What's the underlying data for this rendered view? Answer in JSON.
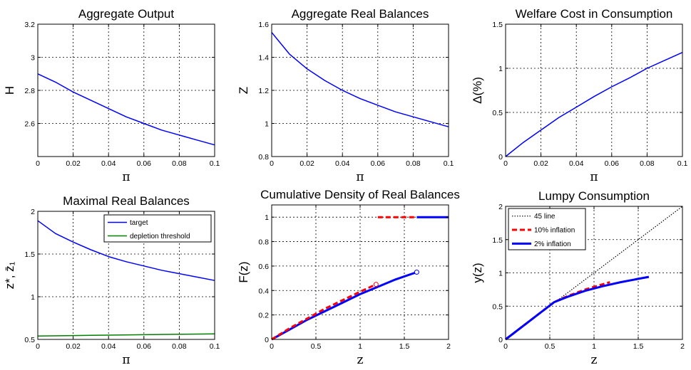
{
  "chart_data": [
    {
      "type": "line",
      "title": "Aggregate Output",
      "xlabel": "π",
      "ylabel": "H",
      "xlim": [
        0,
        0.1
      ],
      "ylim": [
        2.4,
        3.2
      ],
      "grid": true,
      "xticks": [
        0,
        0.02,
        0.04,
        0.06,
        0.08,
        0.1
      ],
      "xticklabels": [
        "0",
        "0.02",
        "0.04",
        "0.06",
        "0.08",
        "0.1"
      ],
      "yticks": [
        2.6,
        2.8,
        3.0,
        3.2
      ],
      "yticklabels": [
        "2.6",
        "2.8",
        "3",
        "3.2"
      ],
      "series": [
        {
          "color": "#0000ff",
          "x": [
            0,
            0.01,
            0.02,
            0.03,
            0.04,
            0.05,
            0.06,
            0.07,
            0.08,
            0.09,
            0.1
          ],
          "y": [
            2.9,
            2.85,
            2.79,
            2.74,
            2.69,
            2.64,
            2.6,
            2.56,
            2.53,
            2.5,
            2.47
          ]
        }
      ]
    },
    {
      "type": "line",
      "title": "Aggregate Real Balances",
      "xlabel": "π",
      "ylabel": "Z",
      "xlim": [
        0,
        0.1
      ],
      "ylim": [
        0.8,
        1.6
      ],
      "grid": true,
      "xticks": [
        0,
        0.02,
        0.04,
        0.06,
        0.08,
        0.1
      ],
      "xticklabels": [
        "0",
        "0.02",
        "0.04",
        "0.06",
        "0.08",
        "0.1"
      ],
      "yticks": [
        0.8,
        1.0,
        1.2,
        1.4,
        1.6
      ],
      "yticklabels": [
        "0.8",
        "1",
        "1.2",
        "1.4",
        "1.6"
      ],
      "series": [
        {
          "color": "#0000ff",
          "x": [
            0,
            0.01,
            0.02,
            0.03,
            0.04,
            0.05,
            0.06,
            0.07,
            0.08,
            0.09,
            0.1
          ],
          "y": [
            1.55,
            1.42,
            1.33,
            1.26,
            1.2,
            1.15,
            1.11,
            1.07,
            1.04,
            1.01,
            0.98
          ]
        }
      ]
    },
    {
      "type": "line",
      "title": "Welfare Cost in Consumption",
      "xlabel": "π",
      "ylabel": "Δ(%)",
      "xlim": [
        0,
        0.1
      ],
      "ylim": [
        0,
        1.5
      ],
      "grid": true,
      "xticks": [
        0,
        0.02,
        0.04,
        0.06,
        0.08,
        0.1
      ],
      "xticklabels": [
        "0",
        "0.02",
        "0.04",
        "0.06",
        "0.08",
        "0.1"
      ],
      "yticks": [
        0,
        0.5,
        1.0,
        1.5
      ],
      "yticklabels": [
        "0",
        "0.5",
        "1",
        "1.5"
      ],
      "series": [
        {
          "color": "#0000ff",
          "x": [
            0,
            0.01,
            0.02,
            0.03,
            0.04,
            0.05,
            0.06,
            0.07,
            0.08,
            0.09,
            0.1
          ],
          "y": [
            0,
            0.16,
            0.3,
            0.44,
            0.56,
            0.68,
            0.79,
            0.89,
            1.0,
            1.09,
            1.18
          ]
        }
      ]
    },
    {
      "type": "line",
      "title": "Maximal Real Balances",
      "xlabel": "π",
      "ylabel": "z*, z̄₁",
      "xlim": [
        0,
        0.1
      ],
      "ylim": [
        0.5,
        2.0
      ],
      "grid": true,
      "legend": "top-right",
      "xticks": [
        0,
        0.02,
        0.04,
        0.06,
        0.08,
        0.1
      ],
      "xticklabels": [
        "0",
        "0.02",
        "0.04",
        "0.06",
        "0.08",
        "0.1"
      ],
      "yticks": [
        0.5,
        1.0,
        1.5,
        2.0
      ],
      "yticklabels": [
        "0.5",
        "1",
        "1.5",
        "2"
      ],
      "series": [
        {
          "name": "target",
          "color": "#0000ff",
          "x": [
            0,
            0.01,
            0.02,
            0.03,
            0.04,
            0.05,
            0.06,
            0.07,
            0.08,
            0.09,
            0.1
          ],
          "y": [
            1.89,
            1.74,
            1.64,
            1.55,
            1.47,
            1.41,
            1.36,
            1.31,
            1.27,
            1.23,
            1.19
          ]
        },
        {
          "name": "depletion threshold",
          "color": "#008000",
          "x": [
            0,
            0.02,
            0.04,
            0.06,
            0.08,
            0.1
          ],
          "y": [
            0.54,
            0.545,
            0.55,
            0.555,
            0.56,
            0.565
          ]
        }
      ]
    },
    {
      "type": "line",
      "title": "Cumulative Density of Real Balances",
      "xlabel": "z",
      "ylabel": "F(z)",
      "xlim": [
        0,
        2
      ],
      "ylim": [
        0,
        1.1
      ],
      "grid": true,
      "xticks": [
        0,
        0.5,
        1,
        1.5,
        2
      ],
      "xticklabels": [
        "0",
        "0.5",
        "1",
        "1.5",
        "2"
      ],
      "yticks": [
        0,
        0.2,
        0.4,
        0.6,
        0.8,
        1.0
      ],
      "yticklabels": [
        "0",
        "0.2",
        "0.4",
        "0.6",
        "0.8",
        "1"
      ],
      "series": [
        {
          "color": "#0000ff",
          "width": 3,
          "x": [
            0,
            0.2,
            0.4,
            0.6,
            0.8,
            1.0,
            1.2,
            1.4,
            1.64
          ],
          "y": [
            0,
            0.08,
            0.16,
            0.23,
            0.3,
            0.37,
            0.43,
            0.49,
            0.55
          ]
        },
        {
          "color": "#0000ff",
          "width": 3,
          "x": [
            1.64,
            2.0
          ],
          "y": [
            1.0,
            1.0
          ]
        },
        {
          "color": "#ff0000",
          "width": 3,
          "dash": true,
          "x": [
            0,
            0.2,
            0.4,
            0.6,
            0.8,
            1.0,
            1.18
          ],
          "y": [
            0,
            0.09,
            0.17,
            0.25,
            0.32,
            0.39,
            0.45
          ]
        },
        {
          "color": "#ff0000",
          "width": 3,
          "dash": true,
          "x": [
            1.2,
            1.64
          ],
          "y": [
            1.0,
            1.0
          ]
        }
      ],
      "markers": [
        {
          "x": 1.64,
          "y": 0.55,
          "color": "#0000ff"
        },
        {
          "x": 1.18,
          "y": 0.45,
          "color": "#ff0000"
        }
      ]
    },
    {
      "type": "line",
      "title": "Lumpy Consumption",
      "xlabel": "z",
      "ylabel": "y(z)",
      "xlim": [
        0,
        2
      ],
      "ylim": [
        0,
        2
      ],
      "grid": true,
      "legend": "top-left",
      "xticks": [
        0,
        0.5,
        1,
        1.5,
        2
      ],
      "xticklabels": [
        "0",
        "0.5",
        "1",
        "1.5",
        "2"
      ],
      "yticks": [
        0,
        0.5,
        1.0,
        1.5,
        2.0
      ],
      "yticklabels": [
        "0",
        "0.5",
        "1",
        "1.5",
        "2"
      ],
      "series": [
        {
          "name": "45 line",
          "color": "#000000",
          "dot": true,
          "x": [
            0,
            2
          ],
          "y": [
            0,
            2
          ]
        },
        {
          "name": "10% inflation",
          "color": "#ff0000",
          "width": 3,
          "dash": true,
          "x": [
            0,
            0.55,
            0.7,
            0.9,
            1.1,
            1.18
          ],
          "y": [
            0,
            0.56,
            0.65,
            0.75,
            0.83,
            0.86
          ]
        },
        {
          "name": "2% inflation",
          "color": "#0000ff",
          "width": 3,
          "x": [
            0,
            0.55,
            0.7,
            0.9,
            1.1,
            1.3,
            1.5,
            1.62
          ],
          "y": [
            0,
            0.56,
            0.64,
            0.73,
            0.8,
            0.86,
            0.91,
            0.94
          ]
        }
      ]
    }
  ]
}
